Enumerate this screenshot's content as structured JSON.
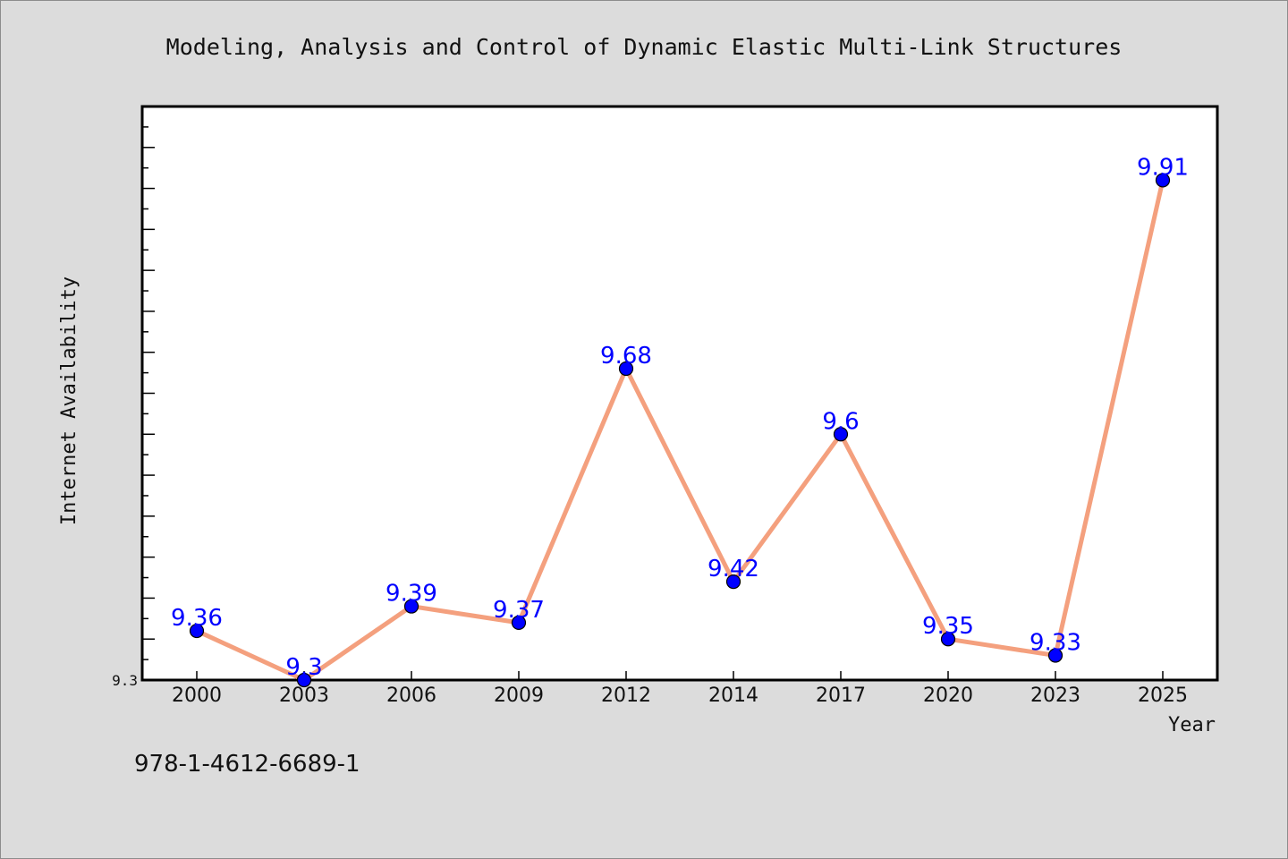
{
  "chart_data": {
    "type": "line",
    "title": "Modeling, Analysis and Control of Dynamic Elastic Multi-Link Structures",
    "xlabel": "Year",
    "ylabel": "Internet Availability",
    "categories": [
      "2000",
      "2003",
      "2006",
      "2009",
      "2012",
      "2014",
      "2017",
      "2020",
      "2023",
      "2025"
    ],
    "values": [
      9.36,
      9.3,
      9.39,
      9.37,
      9.68,
      9.42,
      9.6,
      9.35,
      9.33,
      9.91
    ],
    "data_labels": [
      "9.36",
      "9.3",
      "9.39",
      "9.37",
      "9.68",
      "9.42",
      "9.6",
      "9.35",
      "9.33",
      "9.91"
    ],
    "yticks_labeled": [
      "9.3"
    ],
    "ylim": [
      9.3,
      10.0
    ],
    "grid": false,
    "legend": "none",
    "colors": {
      "line": "#f4a07e",
      "marker": "#0000ff",
      "data_label": "#0000ff",
      "plot_background": "#ffffff",
      "figure_background": "#dcdcdc"
    }
  },
  "footer": {
    "isbn": "978-1-4612-6689-1"
  }
}
